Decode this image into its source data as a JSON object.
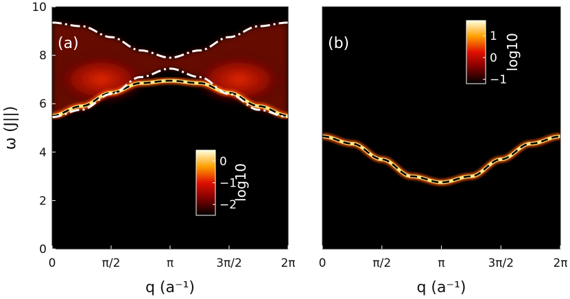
{
  "chart_data": [
    {
      "type": "heatmap",
      "panel_label": "(a)",
      "xlabel": "q (a⁻¹)",
      "ylabel": "ω (J||)",
      "xlim": [
        0,
        6.2832
      ],
      "ylim": [
        0,
        10
      ],
      "x_ticks": [
        {
          "value": 0,
          "label": "0"
        },
        {
          "value": 1.5708,
          "label": "π/2"
        },
        {
          "value": 3.1416,
          "label": "π"
        },
        {
          "value": 4.7124,
          "label": "3π/2"
        },
        {
          "value": 6.2832,
          "label": "2π"
        }
      ],
      "y_ticks": [
        {
          "value": 0,
          "label": "0"
        },
        {
          "value": 2,
          "label": "2"
        },
        {
          "value": 4,
          "label": "4"
        },
        {
          "value": 6,
          "label": "6"
        },
        {
          "value": 8,
          "label": "8"
        },
        {
          "value": 10,
          "label": "10"
        }
      ],
      "colorbar": {
        "title": "log10",
        "ticks": [
          {
            "value": 0,
            "label": "0"
          },
          {
            "value": -1,
            "label": "−1"
          },
          {
            "value": -2,
            "label": "−2"
          }
        ],
        "range": [
          -2.5,
          0.5
        ]
      },
      "series": [
        {
          "style": "dashed",
          "color": "#000000",
          "x": [
            0,
            0.7854,
            1.5708,
            2.3562,
            3.1416,
            3.927,
            4.7124,
            5.4978,
            6.2832
          ],
          "y": [
            5.5,
            5.9,
            6.45,
            6.85,
            6.95,
            6.85,
            6.45,
            5.9,
            5.5
          ]
        },
        {
          "style": "dash-dot",
          "color": "#ffffff",
          "x": [
            0,
            0.7854,
            1.5708,
            2.3562,
            3.1416,
            3.927,
            4.7124,
            5.4978,
            6.2832
          ],
          "y": [
            5.45,
            5.75,
            6.4,
            7.1,
            7.45,
            7.1,
            6.4,
            5.75,
            5.45
          ]
        },
        {
          "style": "dash-dot",
          "color": "#ffffff",
          "x": [
            0,
            0.7854,
            1.5708,
            2.3562,
            3.1416,
            3.927,
            4.7124,
            5.4978,
            6.2832
          ],
          "y": [
            9.35,
            9.2,
            8.75,
            8.2,
            7.9,
            8.2,
            8.75,
            9.2,
            9.35
          ]
        }
      ]
    },
    {
      "type": "heatmap",
      "panel_label": "(b)",
      "xlabel": "q (a⁻¹)",
      "ylabel": "",
      "xlim": [
        0,
        6.2832
      ],
      "ylim": [
        0,
        10
      ],
      "x_ticks": [
        {
          "value": 0,
          "label": "0"
        },
        {
          "value": 1.5708,
          "label": "π/2"
        },
        {
          "value": 3.1416,
          "label": "π"
        },
        {
          "value": 4.7124,
          "label": "3π/2"
        },
        {
          "value": 6.2832,
          "label": "2π"
        }
      ],
      "colorbar": {
        "title": "log10",
        "ticks": [
          {
            "value": 1,
            "label": "1"
          },
          {
            "value": 0,
            "label": "0"
          },
          {
            "value": -1,
            "label": "−1"
          }
        ],
        "range": [
          -1.2,
          1.7
        ]
      },
      "series": [
        {
          "style": "dashed",
          "color": "#000000",
          "x": [
            0,
            0.7854,
            1.5708,
            2.3562,
            3.1416,
            3.927,
            4.7124,
            5.4978,
            6.2832
          ],
          "y": [
            4.65,
            4.35,
            3.7,
            3.0,
            2.75,
            3.0,
            3.7,
            4.35,
            4.65
          ]
        }
      ]
    }
  ]
}
